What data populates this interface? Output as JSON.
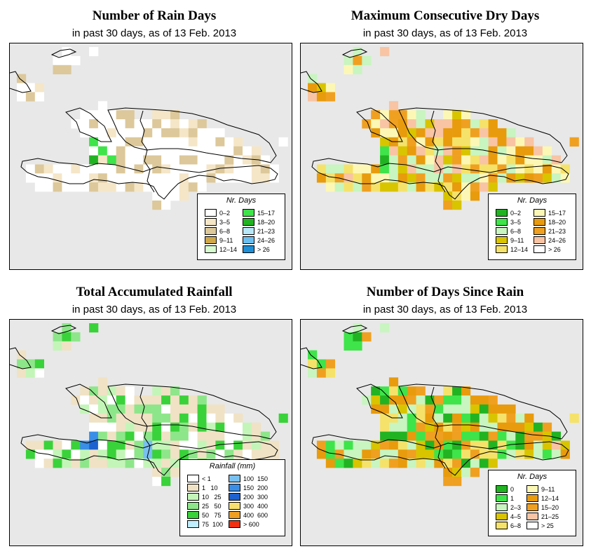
{
  "panels": [
    {
      "id": "rain-days",
      "title": "Number of Rain Days",
      "subtitle": "in past 30 days, as of  13 Feb. 2013",
      "legend": {
        "title": "Nr. Days",
        "items": [
          {
            "label": "0–2",
            "color": "#ffffff"
          },
          {
            "label": "3–5",
            "color": "#f5e6c8"
          },
          {
            "label": "6–8",
            "color": "#dcc89a"
          },
          {
            "label": "9–11",
            "color": "#cfa84a"
          },
          {
            "label": "12–14",
            "color": "#d9fbd0"
          },
          {
            "label": "15–17",
            "color": "#3ee44a"
          },
          {
            "label": "18–20",
            "color": "#22b322"
          },
          {
            "label": "21–23",
            "color": "#b8e8f8"
          },
          {
            "label": "24–26",
            "color": "#6bbff0"
          },
          {
            "label": "> 26",
            "color": "#1e8fd6"
          }
        ]
      }
    },
    {
      "id": "max-dry-days",
      "title": "Maximum Consecutive Dry Days",
      "subtitle": "in past 30 days, as of  13 Feb. 2013",
      "legend": {
        "title": "Nr. Days",
        "items": [
          {
            "label": "0–2",
            "color": "#22b322"
          },
          {
            "label": "3–5",
            "color": "#3ee44a"
          },
          {
            "label": "6–8",
            "color": "#c8f5c0"
          },
          {
            "label": "9–11",
            "color": "#d9c400"
          },
          {
            "label": "12–14",
            "color": "#f5e26a"
          },
          {
            "label": "15–17",
            "color": "#fdf7b5"
          },
          {
            "label": "18–20",
            "color": "#e89b0c"
          },
          {
            "label": "21–23",
            "color": "#f0a020"
          },
          {
            "label": "24–26",
            "color": "#f8c4a4"
          },
          {
            "label": "> 26",
            "color": "#ffffff"
          }
        ]
      }
    },
    {
      "id": "total-rainfall",
      "title": "Total Accumulated Rainfall",
      "subtitle": "in past 30 days, as of  13 Feb. 2013",
      "legend": {
        "title": "Rainfall (mm)",
        "items": [
          {
            "label": "< 1",
            "color": "#ffffff"
          },
          {
            "label": "1   10",
            "color": "#f0e2c4"
          },
          {
            "label": "10   25",
            "color": "#c4f5b8"
          },
          {
            "label": "25   50",
            "color": "#8ee68a"
          },
          {
            "label": "50   75",
            "color": "#3ad23a"
          },
          {
            "label": "75  100",
            "color": "#bfeeff"
          },
          {
            "label": "100  150",
            "color": "#78c0f0"
          },
          {
            "label": "150  200",
            "color": "#3a8ee6"
          },
          {
            "label": "200  300",
            "color": "#1e62d0"
          },
          {
            "label": "300  400",
            "color": "#f8e070"
          },
          {
            "label": "400  600",
            "color": "#f0a020"
          },
          {
            "label": "> 600",
            "color": "#f03010"
          }
        ]
      }
    },
    {
      "id": "days-since-rain",
      "title": "Number of Days Since Rain",
      "subtitle": "in past 30 days, as of  13 Feb. 2013",
      "legend": {
        "title": "Nr. Days",
        "items": [
          {
            "label": "0",
            "color": "#22b322"
          },
          {
            "label": "1",
            "color": "#3ee44a"
          },
          {
            "label": "2–3",
            "color": "#c8f5c0"
          },
          {
            "label": "4–5",
            "color": "#d9c400"
          },
          {
            "label": "6–8",
            "color": "#f5e26a"
          },
          {
            "label": "9–11",
            "color": "#fdf7b5"
          },
          {
            "label": "12–14",
            "color": "#e89b0c"
          },
          {
            "label": "15–20",
            "color": "#f0a020"
          },
          {
            "label": "21–25",
            "color": "#f8c4a4"
          },
          {
            "label": "> 25",
            "color": "#ffffff"
          }
        ]
      }
    }
  ]
}
